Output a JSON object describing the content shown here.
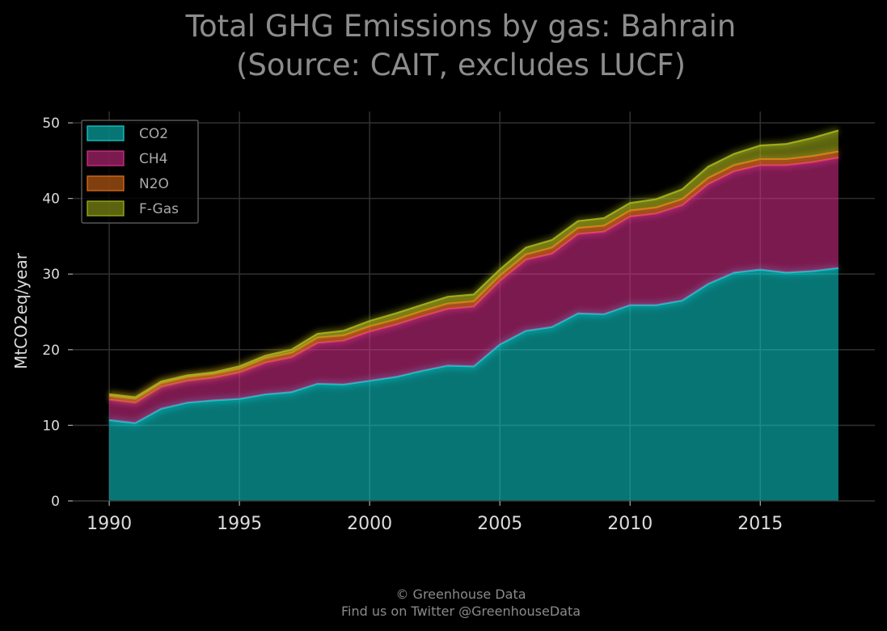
{
  "title_lines": [
    "Total GHG Emissions by gas: Bahrain",
    "(Source: CAIT, excludes LUCF)"
  ],
  "footer_lines": [
    "© Greenhouse Data",
    "Find us on Twitter @GreenhouseData"
  ],
  "chart_data": {
    "type": "area",
    "stacked": true,
    "title": "Total GHG Emissions by gas: Bahrain (Source: CAIT, excludes LUCF)",
    "xlabel": "",
    "ylabel": "MtCO2eq/year",
    "x": [
      1990,
      1991,
      1992,
      1993,
      1994,
      1995,
      1996,
      1997,
      1998,
      1999,
      2000,
      2001,
      2002,
      2003,
      2004,
      2005,
      2006,
      2007,
      2008,
      2009,
      2010,
      2011,
      2012,
      2013,
      2014,
      2015,
      2016,
      2017,
      2018
    ],
    "xticks": [
      1990,
      1995,
      2000,
      2005,
      2010,
      2015
    ],
    "yticks": [
      0,
      10,
      20,
      30,
      40,
      50
    ],
    "xlim": [
      1988.6,
      2019.4
    ],
    "ylim": [
      0,
      51.5
    ],
    "grid": true,
    "legend_position": "top-left",
    "series": [
      {
        "name": "CO2",
        "color": "#0fd6d6",
        "values": [
          10.7,
          10.3,
          12.2,
          13.0,
          13.3,
          13.5,
          14.1,
          14.4,
          15.5,
          15.4,
          15.9,
          16.4,
          17.2,
          17.9,
          17.8,
          20.7,
          22.5,
          23.0,
          24.8,
          24.7,
          25.9,
          25.9,
          26.5,
          28.7,
          30.2,
          30.6,
          30.2,
          30.4,
          30.8
        ]
      },
      {
        "name": "CH4",
        "color": "#e0308f",
        "values": [
          2.7,
          2.7,
          2.9,
          2.9,
          3.0,
          3.5,
          4.2,
          4.6,
          5.4,
          5.8,
          6.5,
          6.9,
          7.2,
          7.5,
          7.9,
          8.4,
          9.4,
          9.7,
          10.5,
          10.9,
          11.7,
          12.1,
          12.6,
          13.2,
          13.4,
          13.8,
          14.2,
          14.4,
          14.6
        ]
      },
      {
        "name": "N2O",
        "color": "#e8721c",
        "values": [
          0.5,
          0.5,
          0.5,
          0.5,
          0.5,
          0.5,
          0.6,
          0.6,
          0.7,
          0.7,
          0.7,
          0.7,
          0.7,
          0.7,
          0.7,
          0.7,
          0.7,
          0.8,
          0.8,
          0.8,
          0.8,
          0.8,
          0.8,
          0.8,
          0.8,
          0.8,
          0.8,
          0.8,
          0.8
        ]
      },
      {
        "name": "F-Gas",
        "color": "#a6b51c",
        "values": [
          0.2,
          0.2,
          0.2,
          0.2,
          0.2,
          0.3,
          0.3,
          0.4,
          0.5,
          0.6,
          0.7,
          0.8,
          0.8,
          0.9,
          0.9,
          0.8,
          0.9,
          1.0,
          0.9,
          1.0,
          1.0,
          1.1,
          1.3,
          1.5,
          1.5,
          1.8,
          2.0,
          2.4,
          2.8
        ]
      }
    ]
  }
}
